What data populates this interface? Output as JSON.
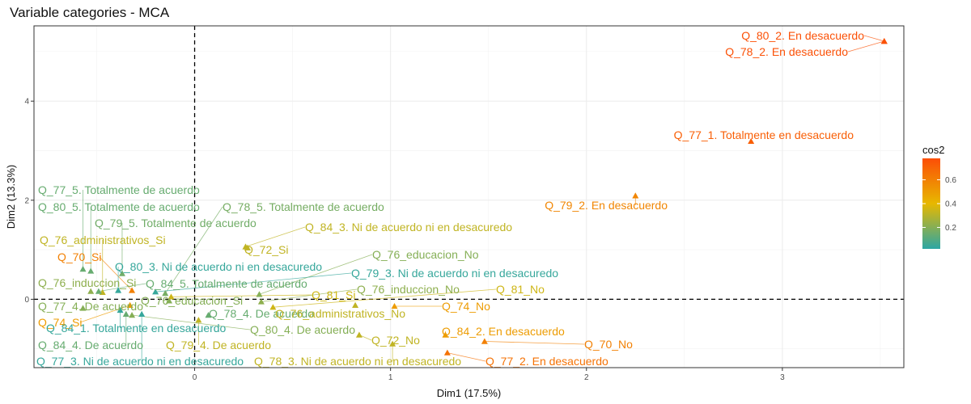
{
  "chart_data": {
    "type": "scatter",
    "title": "Variable categories - MCA",
    "xlabel": "Dim1 (17.5%)",
    "ylabel": "Dim2 (13.3%)",
    "xlim": [
      -0.82,
      3.62
    ],
    "ylim": [
      -1.38,
      5.52
    ],
    "xticks": [
      0,
      1,
      2,
      3
    ],
    "yticks": [
      0,
      2,
      4
    ],
    "grid": true,
    "reference_lines": {
      "x": 0,
      "y": 0,
      "style": "dashed"
    },
    "legend": {
      "title": "cos2",
      "ticks": [
        0.2,
        0.4,
        0.6
      ],
      "range": [
        0.02,
        0.78
      ],
      "colors": [
        "#2ca6a4",
        "#e7b800",
        "#fc4e07"
      ],
      "position": "right"
    },
    "points": [
      {
        "label": "Q_80_2. En desacuerdo",
        "x": 3.52,
        "y": 5.21,
        "cos2": 0.77
      },
      {
        "label": "Q_78_2. En desacuerdo",
        "x": 3.52,
        "y": 5.21,
        "cos2": 0.77
      },
      {
        "label": "Q_77_1. Totalmente en desacuerdo",
        "x": 2.84,
        "y": 3.19,
        "cos2": 0.72
      },
      {
        "label": "Q_79_2. En desacuerdo",
        "x": 2.25,
        "y": 2.09,
        "cos2": 0.58
      },
      {
        "label": "Q_77_5. Totalmente de acuerdo",
        "x": -0.57,
        "y": 0.61,
        "cos2": 0.14
      },
      {
        "label": "Q_80_5. Totalmente de acuerdo",
        "x": -0.53,
        "y": 0.57,
        "cos2": 0.14
      },
      {
        "label": "Q_78_5. Totalmente de acuerdo",
        "x": -0.15,
        "y": 0.12,
        "cos2": 0.17
      },
      {
        "label": "Q_79_5. Totalmente de acuerdo",
        "x": -0.37,
        "y": 0.52,
        "cos2": 0.16
      },
      {
        "label": "Q_84_3. Ni de acuerdo ni en desacuredo",
        "x": 0.26,
        "y": 1.06,
        "cos2": 0.32
      },
      {
        "label": "Q_76_administrativos_Si",
        "x": -0.47,
        "y": 0.14,
        "cos2": 0.32
      },
      {
        "label": "Q_72_Si",
        "x": 0.27,
        "y": 1.04,
        "cos2": 0.32
      },
      {
        "label": "Q_70_Si",
        "x": -0.32,
        "y": 0.18,
        "cos2": 0.6
      },
      {
        "label": "Q_76_educacion_No",
        "x": 0.33,
        "y": 0.1,
        "cos2": 0.2
      },
      {
        "label": "Q_80_3. Ni de acuerdo ni en desacuredo",
        "x": -0.39,
        "y": 0.18,
        "cos2": 0.04
      },
      {
        "label": "Q_79_3. Ni de acuerdo ni en desacuredo",
        "x": -0.2,
        "y": 0.15,
        "cos2": 0.04
      },
      {
        "label": "Q_76_induccion_Si",
        "x": -0.53,
        "y": 0.16,
        "cos2": 0.22
      },
      {
        "label": "Q_84_5. Totalmente de acuerdo",
        "x": -0.49,
        "y": 0.16,
        "cos2": 0.14
      },
      {
        "label": "Q_81_Si",
        "x": -0.12,
        "y": 0.05,
        "cos2": 0.35
      },
      {
        "label": "Q_76_induccion_No",
        "x": 0.34,
        "y": -0.05,
        "cos2": 0.22
      },
      {
        "label": "Q_81_No",
        "x": 0.4,
        "y": -0.16,
        "cos2": 0.35
      },
      {
        "label": "Q_76_educacion_Si",
        "x": -0.13,
        "y": -0.03,
        "cos2": 0.2
      },
      {
        "label": "Q_77_4. De acuerdo",
        "x": -0.57,
        "y": -0.18,
        "cos2": 0.2
      },
      {
        "label": "Q_78_4. De acuerdo",
        "x": 0.07,
        "y": -0.32,
        "cos2": 0.14
      },
      {
        "label": "Q_76_administrativos_No",
        "x": 0.82,
        "y": -0.12,
        "cos2": 0.32
      },
      {
        "label": "Q_74_No",
        "x": 1.02,
        "y": -0.14,
        "cos2": 0.5
      },
      {
        "label": "Q_74_Si",
        "x": -0.33,
        "y": -0.12,
        "cos2": 0.5
      },
      {
        "label": "Q_84_1. Totalmente en desacuerdo",
        "x": -0.38,
        "y": -0.22,
        "cos2": 0.04
      },
      {
        "label": "Q_80_4. De acuerdo",
        "x": -0.32,
        "y": -0.32,
        "cos2": 0.2
      },
      {
        "label": "Q_84_2. En desacuerdo",
        "x": 1.28,
        "y": -0.72,
        "cos2": 0.5
      },
      {
        "label": "Q_72_No",
        "x": 0.84,
        "y": -0.72,
        "cos2": 0.32
      },
      {
        "label": "Q_70_No",
        "x": 1.48,
        "y": -0.85,
        "cos2": 0.6
      },
      {
        "label": "Q_84_4. De acuerdo",
        "x": -0.35,
        "y": -0.3,
        "cos2": 0.14
      },
      {
        "label": "Q_79_4. De acuerdo",
        "x": 0.02,
        "y": -0.42,
        "cos2": 0.32
      },
      {
        "label": "Q_77_3. Ni de acuerdo ni en desacuredo",
        "x": -0.27,
        "y": -0.3,
        "cos2": 0.04
      },
      {
        "label": "Q_78_3. Ni de acuerdo ni en desacuredo",
        "x": 1.01,
        "y": -0.9,
        "cos2": 0.32
      },
      {
        "label": "Q_77_2. En desacuerdo",
        "x": 1.29,
        "y": -1.08,
        "cos2": 0.65
      }
    ]
  }
}
